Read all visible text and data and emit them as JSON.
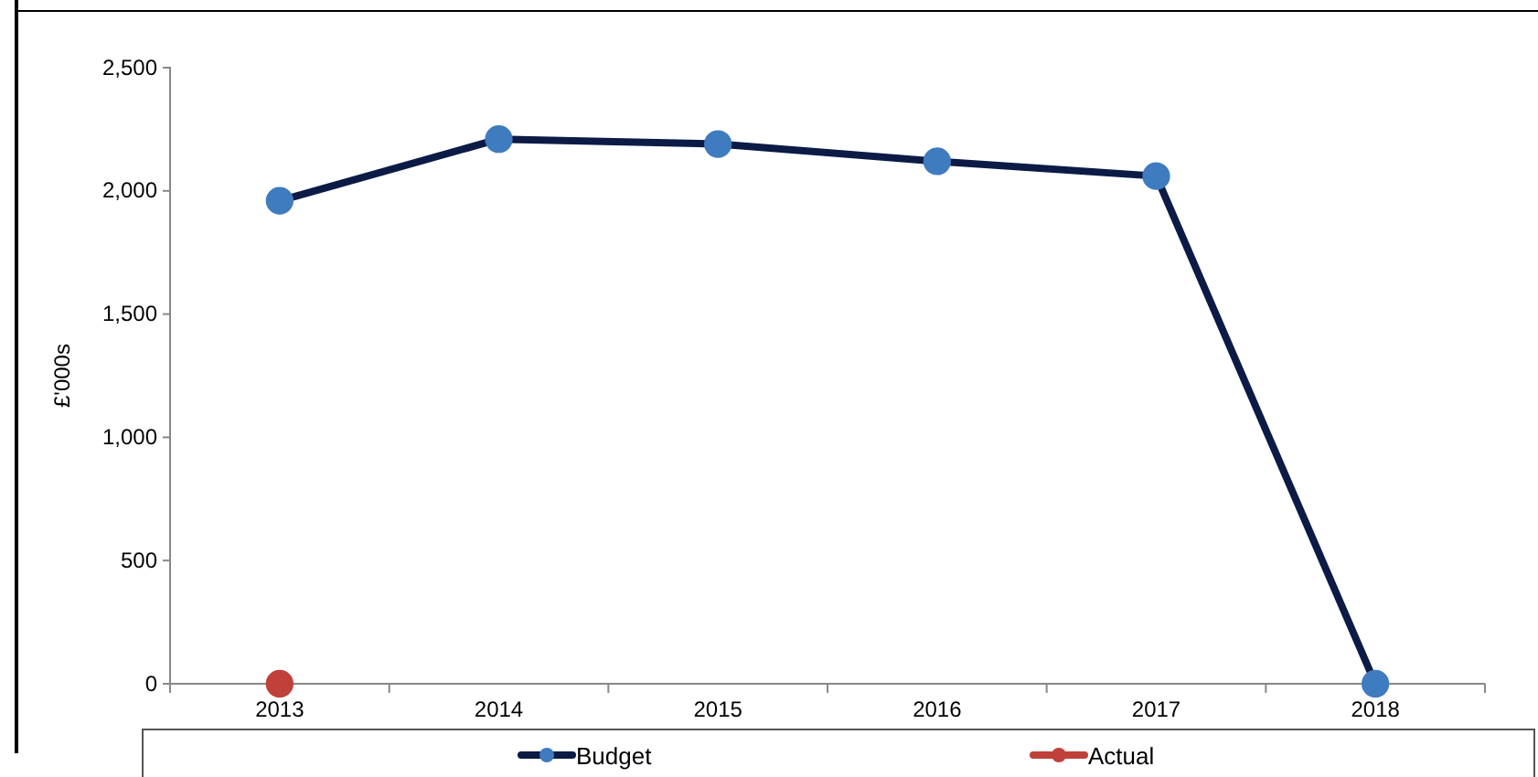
{
  "chart_data": {
    "type": "line",
    "ylabel": "£'000s",
    "categories": [
      "2013",
      "2014",
      "2015",
      "2016",
      "2017",
      "2018"
    ],
    "series": [
      {
        "name": "Budget",
        "color": "#0b1b45",
        "colors": [
          "#3f7bbf",
          "#3f7bbf",
          "#3f7bbf",
          "#3f7bbf",
          "#3f7bbf",
          "#3f7bbf"
        ],
        "values": [
          1960,
          2210,
          2190,
          2120,
          2060,
          0
        ]
      },
      {
        "name": "Actual",
        "color": "#c0403a",
        "values": [
          0,
          null,
          null,
          null,
          null,
          null
        ]
      }
    ],
    "ylim": [
      0,
      2500
    ],
    "yticks": [
      {
        "value": 0,
        "label": "0"
      },
      {
        "value": 500,
        "label": "500"
      },
      {
        "value": 1000,
        "label": "1,000"
      },
      {
        "value": 1500,
        "label": "1,500"
      },
      {
        "value": 2000,
        "label": "2,000"
      },
      {
        "value": 2500,
        "label": "2,500"
      }
    ],
    "grid": false,
    "legend": "bottom",
    "marker": "circle",
    "line_style": "solid"
  }
}
